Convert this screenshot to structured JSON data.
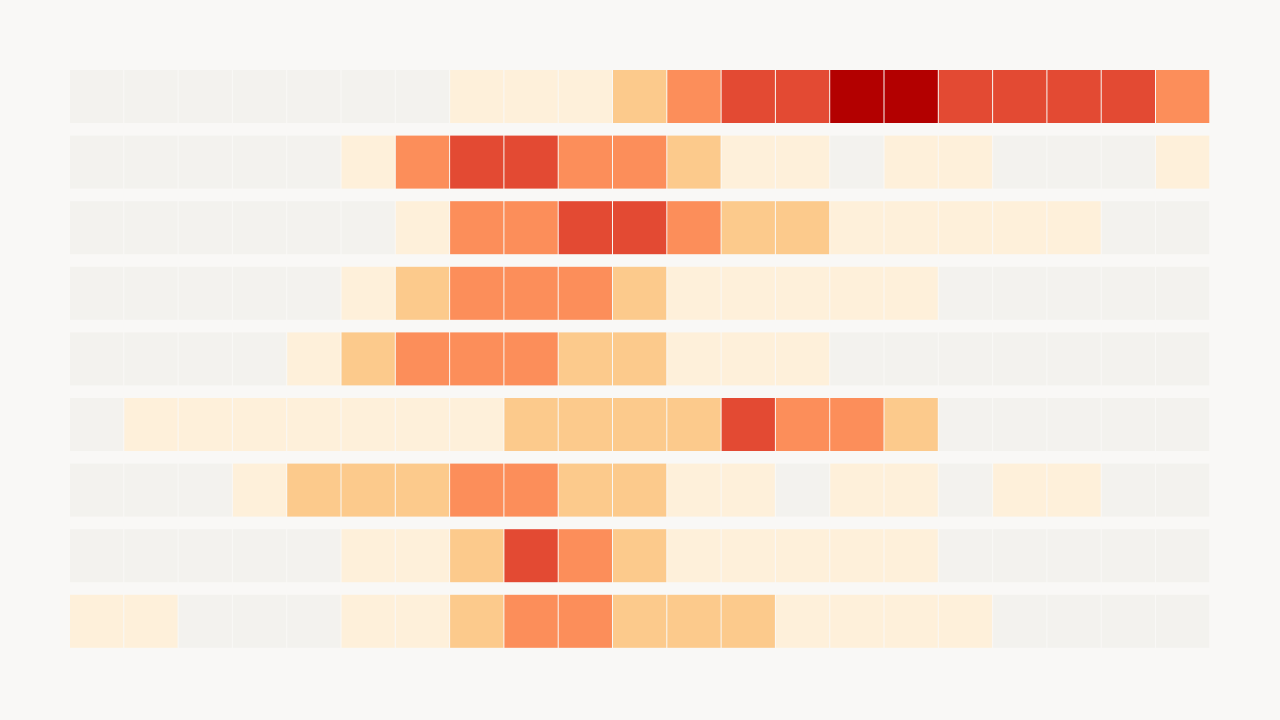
{
  "chart_data": {
    "type": "heatmap",
    "title": "",
    "xlabel": "",
    "ylabel": "",
    "grid": false,
    "legend": "none",
    "rows": 9,
    "columns": 21,
    "color_scale": [
      "#f3f2ee",
      "#fef0da",
      "#fcca8c",
      "#fc8e5a",
      "#e34a33",
      "#b30000"
    ],
    "values": [
      [
        0,
        0,
        0,
        0,
        0,
        0,
        0,
        1,
        1,
        1,
        2,
        3,
        4,
        4,
        5,
        5,
        4,
        4,
        4,
        4,
        3
      ],
      [
        0,
        0,
        0,
        0,
        0,
        1,
        3,
        4,
        4,
        3,
        3,
        2,
        1,
        1,
        0,
        1,
        1,
        0,
        0,
        0,
        1
      ],
      [
        0,
        0,
        0,
        0,
        0,
        0,
        1,
        3,
        3,
        4,
        4,
        3,
        2,
        2,
        1,
        1,
        1,
        1,
        1,
        0,
        0
      ],
      [
        0,
        0,
        0,
        0,
        0,
        1,
        2,
        3,
        3,
        3,
        2,
        1,
        1,
        1,
        1,
        1,
        0,
        0,
        0,
        0,
        0
      ],
      [
        0,
        0,
        0,
        0,
        1,
        2,
        3,
        3,
        3,
        2,
        2,
        1,
        1,
        1,
        0,
        0,
        0,
        0,
        0,
        0,
        0
      ],
      [
        0,
        1,
        1,
        1,
        1,
        1,
        1,
        1,
        2,
        2,
        2,
        2,
        4,
        3,
        3,
        2,
        0,
        0,
        0,
        0,
        0
      ],
      [
        0,
        0,
        0,
        1,
        2,
        2,
        2,
        3,
        3,
        2,
        2,
        1,
        1,
        0,
        1,
        1,
        0,
        1,
        1,
        0,
        0
      ],
      [
        0,
        0,
        0,
        0,
        0,
        1,
        1,
        2,
        4,
        3,
        2,
        1,
        1,
        1,
        1,
        1,
        0,
        0,
        0,
        0,
        0
      ],
      [
        1,
        1,
        0,
        0,
        0,
        1,
        1,
        2,
        3,
        3,
        2,
        2,
        2,
        1,
        1,
        1,
        1,
        0,
        0,
        0,
        0
      ]
    ]
  }
}
